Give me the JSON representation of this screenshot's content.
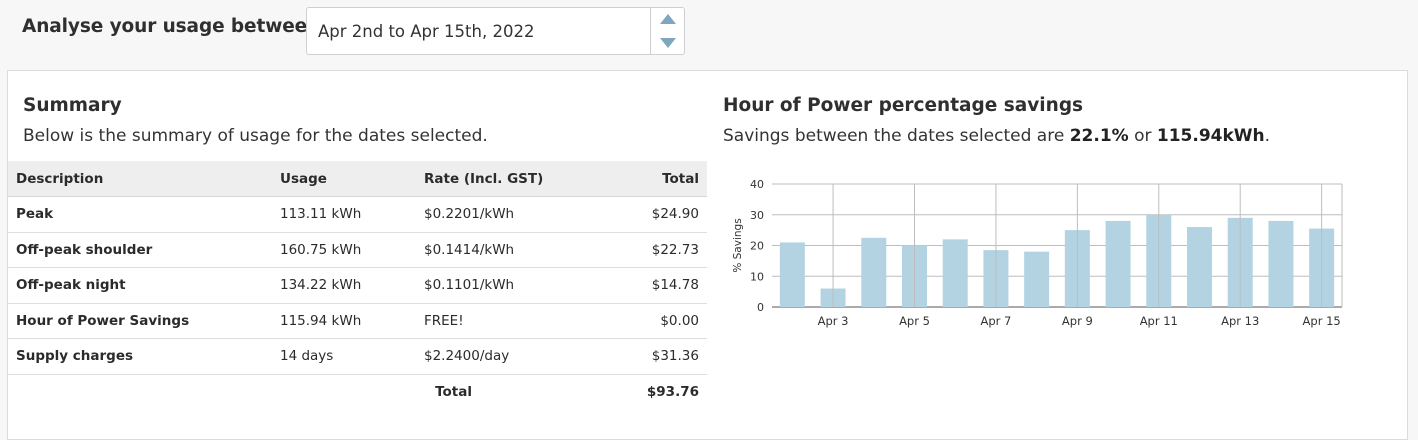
{
  "header": {
    "analyse_label": "Analyse your usage between",
    "date_range_value": "Apr 2nd to Apr 15th, 2022"
  },
  "summary": {
    "title": "Summary",
    "subtitle": "Below is the summary of usage for the dates selected.",
    "columns": [
      "Description",
      "Usage",
      "Rate (Incl. GST)",
      "Total"
    ],
    "rows": [
      {
        "description": "Peak",
        "usage": "113.11 kWh",
        "rate": "$0.2201/kWh",
        "total": "$24.90"
      },
      {
        "description": "Off-peak shoulder",
        "usage": "160.75 kWh",
        "rate": "$0.1414/kWh",
        "total": "$22.73"
      },
      {
        "description": "Off-peak night",
        "usage": "134.22 kWh",
        "rate": "$0.1101/kWh",
        "total": "$14.78"
      },
      {
        "description": "Hour of Power Savings",
        "usage": "115.94 kWh",
        "rate": "FREE!",
        "total": "$0.00"
      },
      {
        "description": "Supply charges",
        "usage": "14 days",
        "rate": "$2.2400/day",
        "total": "$31.36"
      }
    ],
    "total_label": "Total",
    "total_value": "$93.76"
  },
  "savings": {
    "title": "Hour of Power percentage savings",
    "subtitle_prefix": "Savings between the dates selected are",
    "percent": "22.1%",
    "connector": "or",
    "kwh": "115.94kWh",
    "suffix": "."
  },
  "colors": {
    "bar": "#b3d3e3",
    "stepper_arrow": "#7ea6bf"
  },
  "chart_data": {
    "type": "bar",
    "categories": [
      "Apr 2",
      "Apr 3",
      "Apr 4",
      "Apr 5",
      "Apr 6",
      "Apr 7",
      "Apr 8",
      "Apr 9",
      "Apr 10",
      "Apr 11",
      "Apr 12",
      "Apr 13",
      "Apr 14",
      "Apr 15"
    ],
    "tick_labels": [
      "Apr 3",
      "Apr 5",
      "Apr 7",
      "Apr 9",
      "Apr 11",
      "Apr 13",
      "Apr 15"
    ],
    "values": [
      21,
      6,
      22.5,
      20,
      22,
      18.5,
      18,
      25,
      28,
      30,
      26,
      29,
      28,
      25.5
    ],
    "ylabel": "% Savings",
    "ylim": [
      0,
      40
    ],
    "yticks": [
      0,
      10,
      20,
      30,
      40
    ],
    "grid": true
  }
}
